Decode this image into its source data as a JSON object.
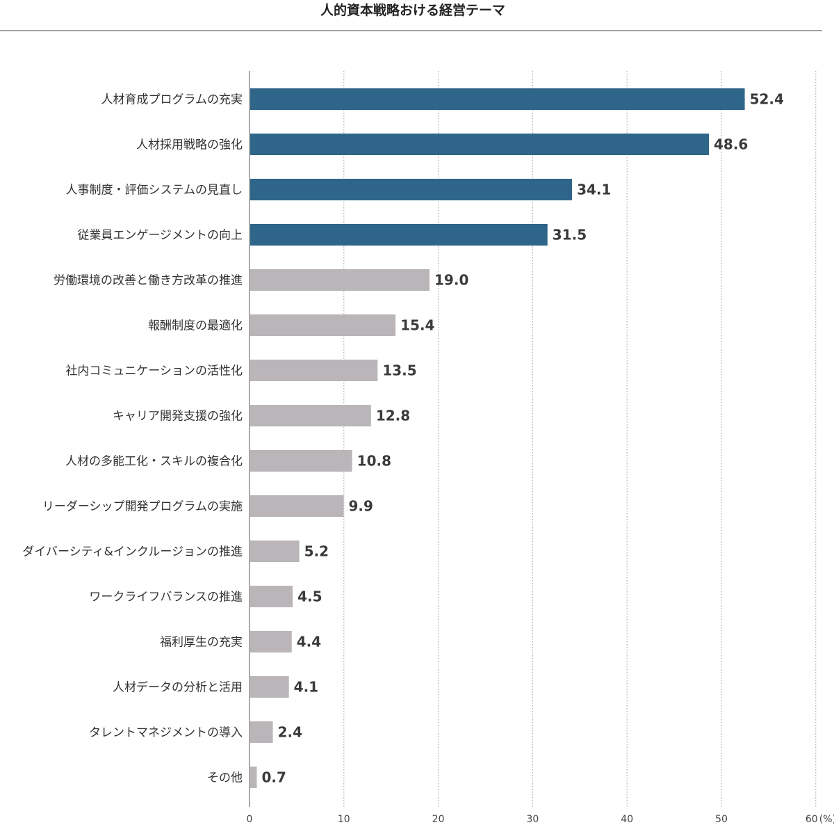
{
  "chart_data": {
    "type": "bar",
    "orientation": "horizontal",
    "title": "人的資本戦略おける経営テーマ",
    "categories": [
      "人材育成プログラムの充実",
      "人材採用戦略の強化",
      "人事制度・評価システムの見直し",
      "従業員エンゲージメントの向上",
      "労働環境の改善と働き方改革の推進",
      "報酬制度の最適化",
      "社内コミュニケーションの活性化",
      "キャリア開発支援の強化",
      "人材の多能工化・スキルの複合化",
      "リーダーシップ開発プログラムの実施",
      "ダイバーシティ&インクルージョンの推進",
      "ワークライフバランスの推進",
      "福利厚生の充実",
      "人材データの分析と活用",
      "タレントマネジメントの導入",
      "その他"
    ],
    "values": [
      52.4,
      48.6,
      34.1,
      31.5,
      19.0,
      15.4,
      13.5,
      12.8,
      10.8,
      9.9,
      5.2,
      4.5,
      4.4,
      4.1,
      2.4,
      0.7
    ],
    "value_labels": [
      "52.4",
      "48.6",
      "34.1",
      "31.5",
      "19.0",
      "15.4",
      "13.5",
      "12.8",
      "10.8",
      "9.9",
      "5.2",
      "4.5",
      "4.4",
      "4.1",
      "2.4",
      "0.7"
    ],
    "highlight_count": 4,
    "colors": {
      "highlight": "#2e6589",
      "default": "#b9b5b8",
      "grid": "#999999",
      "axis": "#555555",
      "rule": "#444444"
    },
    "xlim": [
      0,
      60
    ],
    "x_ticks": [
      0,
      10,
      20,
      30,
      40,
      50,
      60
    ],
    "x_tick_labels": [
      "0",
      "10",
      "20",
      "30",
      "40",
      "50",
      "60"
    ],
    "x_unit": "(%)",
    "grid": true
  }
}
